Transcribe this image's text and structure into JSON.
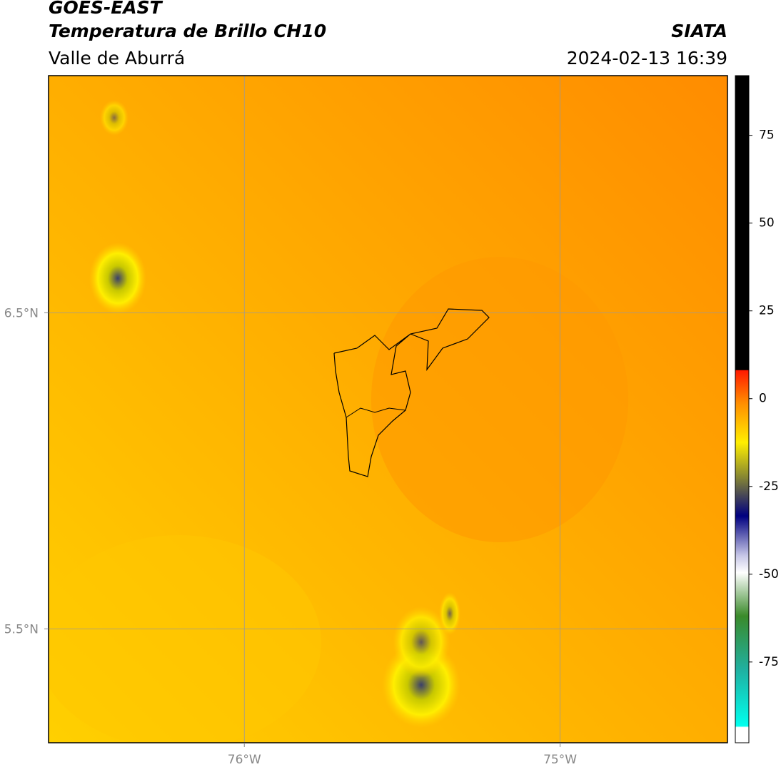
{
  "header": {
    "title": "GOES-EAST",
    "subtitle": "Temperatura de Brillo CH10",
    "region": "Valle de Aburrá",
    "source": "SIATA",
    "datetime": "2024-02-13 16:39"
  },
  "map": {
    "xlim": [
      -76.62,
      -74.47
    ],
    "ylim": [
      5.14,
      7.25
    ],
    "xticks": [
      {
        "value": -76,
        "label": "76°W"
      },
      {
        "value": -75,
        "label": "75°W"
      }
    ],
    "yticks": [
      {
        "value": 6.5,
        "label": "6.5°N"
      },
      {
        "value": 5.5,
        "label": "5.5°N"
      }
    ],
    "grid": true
  },
  "colorbar": {
    "lim": [
      -98,
      92
    ],
    "ticks": [
      75,
      50,
      25,
      0,
      -25,
      -50,
      -75
    ]
  }
}
